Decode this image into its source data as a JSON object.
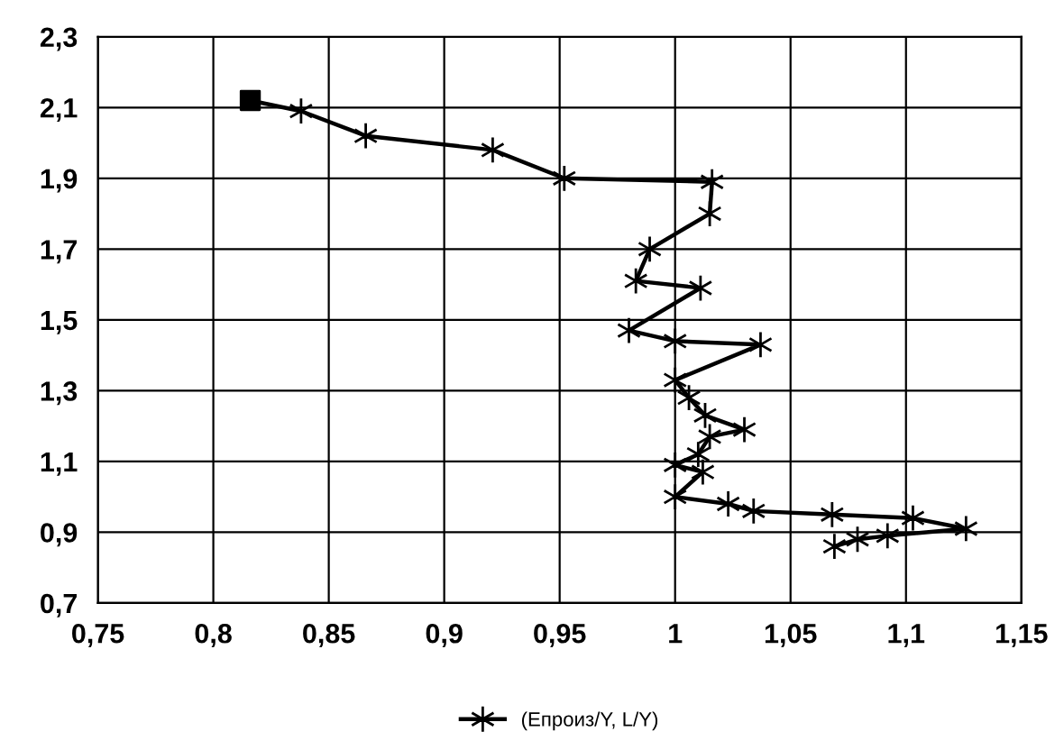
{
  "chart_data": {
    "type": "line",
    "series": [
      {
        "name": null,
        "type": "scatter",
        "color": "#000000",
        "marker": "square",
        "x": [
          0.816
        ],
        "values": [
          2.12
        ]
      },
      {
        "name": "(Епроиз/Y, L/Y)",
        "color": "#000000",
        "marker": "cross",
        "line_style": "solid",
        "x": [
          0.816,
          0.838,
          0.866,
          0.921,
          0.952,
          1.016,
          1.015,
          0.989,
          0.983,
          1.011,
          0.98,
          1.0,
          1.037,
          1.0,
          1.006,
          1.013,
          1.03,
          1.015,
          1.01,
          1.0,
          1.012,
          1.0,
          1.023,
          1.034,
          1.068,
          1.103,
          1.126,
          1.092,
          1.079,
          1.069
        ],
        "values": [
          2.12,
          2.09,
          2.02,
          1.98,
          1.9,
          1.89,
          1.8,
          1.7,
          1.61,
          1.59,
          1.47,
          1.44,
          1.43,
          1.33,
          1.28,
          1.23,
          1.19,
          1.17,
          1.12,
          1.09,
          1.07,
          1.0,
          0.98,
          0.96,
          0.95,
          0.94,
          0.91,
          0.89,
          0.88,
          0.86
        ]
      }
    ],
    "xlim": [
      0.75,
      1.15
    ],
    "xticks": [
      {
        "value": 0.75,
        "label": "0,75"
      },
      {
        "value": 0.8,
        "label": "0,8"
      },
      {
        "value": 0.85,
        "label": "0,85"
      },
      {
        "value": 0.9,
        "label": "0,9"
      },
      {
        "value": 0.95,
        "label": "0,95"
      },
      {
        "value": 1,
        "label": "1"
      },
      {
        "value": 1.05,
        "label": "1,05"
      },
      {
        "value": 1.1,
        "label": "1,1"
      },
      {
        "value": 1.15,
        "label": "1,15"
      }
    ],
    "ylim": [
      0.7,
      2.3
    ],
    "yticks": [
      {
        "value": 0.7,
        "label": "0,7"
      },
      {
        "value": 0.9,
        "label": "0,9"
      },
      {
        "value": 1.1,
        "label": "1,1"
      },
      {
        "value": 1.3,
        "label": "1,3"
      },
      {
        "value": 1.5,
        "label": "1,5"
      },
      {
        "value": 1.7,
        "label": "1,7"
      },
      {
        "value": 1.9,
        "label": "1,9"
      },
      {
        "value": 2.1,
        "label": "2,1"
      },
      {
        "value": 2.3,
        "label": "2,3"
      }
    ],
    "grid": true,
    "legend": "bottom"
  }
}
